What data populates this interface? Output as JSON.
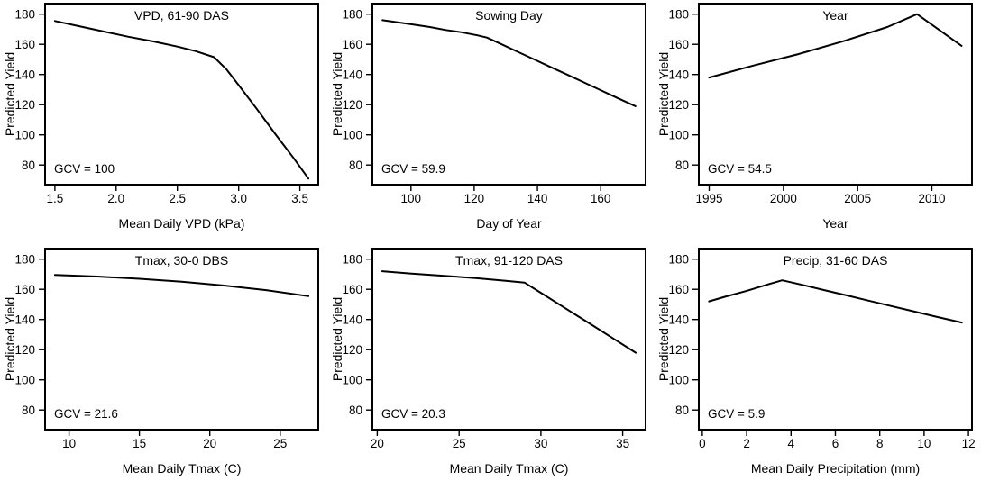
{
  "style": {
    "background": "#ffffff",
    "foreground": "#000000",
    "frame_stroke_width": 2,
    "tick_stroke_width": 1.4,
    "line_stroke_width": 2
  },
  "chart_data": [
    {
      "type": "line",
      "title": "VPD, 61-90 DAS",
      "annotation": "GCV = 100",
      "xlabel": "Mean Daily VPD (kPa)",
      "ylabel": "Predicted Yield",
      "xticks": [
        1.5,
        2.0,
        2.5,
        3.0,
        3.5
      ],
      "xtick_labels": [
        "1.5",
        "2.0",
        "2.5",
        "3.0",
        "3.5"
      ],
      "yticks": [
        80,
        100,
        120,
        140,
        160,
        180
      ],
      "xlim": [
        1.42,
        3.65
      ],
      "ylim": [
        67,
        187
      ],
      "x": [
        1.5,
        1.7,
        1.9,
        2.1,
        2.3,
        2.5,
        2.65,
        2.8,
        2.9,
        3.0,
        3.15,
        3.3,
        3.45,
        3.57
      ],
      "y": [
        175.5,
        172,
        168.5,
        165,
        162,
        158.5,
        155.5,
        151.5,
        143.5,
        133,
        117,
        100.5,
        84.5,
        71
      ]
    },
    {
      "type": "line",
      "title": "Sowing Day",
      "annotation": "GCV = 59.9",
      "xlabel": "Day of Year",
      "ylabel": "Predicted Yield",
      "xticks": [
        100,
        120,
        140,
        160
      ],
      "xtick_labels": [
        "100",
        "120",
        "140",
        "160"
      ],
      "yticks": [
        80,
        100,
        120,
        140,
        160,
        180
      ],
      "xlim": [
        87.8,
        174.2
      ],
      "ylim": [
        67,
        187
      ],
      "x": [
        91,
        96,
        101,
        106,
        111,
        116,
        121,
        124,
        129,
        134,
        139,
        144,
        149,
        154,
        159,
        164,
        168,
        171
      ],
      "y": [
        176,
        174.5,
        173,
        171.5,
        169.5,
        168,
        166,
        164.5,
        159.7,
        154.8,
        150,
        145.1,
        140.3,
        135.4,
        130.6,
        125.7,
        121.8,
        119
      ]
    },
    {
      "type": "line",
      "title": "Year",
      "annotation": "GCV = 54.5",
      "xlabel": "Year",
      "ylabel": "Predicted Yield",
      "xticks": [
        1995,
        2000,
        2005,
        2010
      ],
      "xtick_labels": [
        "1995",
        "2000",
        "2005",
        "2010"
      ],
      "yticks": [
        80,
        100,
        120,
        140,
        160,
        180
      ],
      "xlim": [
        1994.3,
        2012.7
      ],
      "ylim": [
        67,
        187
      ],
      "x": [
        1995,
        1998,
        2001,
        2004,
        2007,
        2009,
        2012
      ],
      "y": [
        138,
        146,
        153.5,
        162,
        171.5,
        180,
        159
      ]
    },
    {
      "type": "line",
      "title": "Tmax, 30-0 DBS",
      "annotation": "GCV = 21.6",
      "xlabel": "Mean Daily Tmax (C)",
      "ylabel": "Predicted Yield",
      "xticks": [
        10,
        15,
        20,
        25
      ],
      "xtick_labels": [
        "10",
        "15",
        "20",
        "25"
      ],
      "yticks": [
        80,
        100,
        120,
        140,
        160,
        180
      ],
      "xlim": [
        8.3,
        27.7
      ],
      "ylim": [
        67,
        187
      ],
      "x": [
        9,
        12,
        15,
        18,
        21,
        24,
        27
      ],
      "y": [
        169.5,
        168.5,
        167,
        165,
        162.5,
        159.5,
        155.5
      ]
    },
    {
      "type": "line",
      "title": "Tmax, 91-120 DAS",
      "annotation": "GCV = 20.3",
      "xlabel": "Mean Daily Tmax (C)",
      "ylabel": "Predicted Yield",
      "xticks": [
        20,
        25,
        30,
        35
      ],
      "xtick_labels": [
        "20",
        "25",
        "30",
        "35"
      ],
      "yticks": [
        80,
        100,
        120,
        140,
        160,
        180
      ],
      "xlim": [
        19.7,
        36.4
      ],
      "ylim": [
        67,
        187
      ],
      "x": [
        20.3,
        22,
        24,
        26,
        28,
        29,
        30,
        31.5,
        33,
        34.5,
        35.8
      ],
      "y": [
        172,
        170.5,
        169,
        167.5,
        165.5,
        164.5,
        157.7,
        147.4,
        137.2,
        126.9,
        118
      ]
    },
    {
      "type": "line",
      "title": "Precip, 31-60 DAS",
      "annotation": "GCV = 5.9",
      "xlabel": "Mean Daily Precipitation (mm)",
      "ylabel": "Predicted Yield",
      "xticks": [
        0,
        2,
        4,
        6,
        8,
        10,
        12
      ],
      "xtick_labels": [
        "0",
        "2",
        "4",
        "6",
        "8",
        "10",
        "12"
      ],
      "yticks": [
        80,
        100,
        120,
        140,
        160,
        180
      ],
      "xlim": [
        -0.16,
        12.16
      ],
      "ylim": [
        67,
        187
      ],
      "x": [
        0.3,
        1,
        2,
        3,
        3.6,
        4.5,
        5.5,
        6.5,
        7.5,
        8.5,
        9.5,
        10.5,
        11.7
      ],
      "y": [
        152,
        155,
        159,
        163.5,
        166,
        163,
        159.5,
        156,
        152.5,
        149,
        145.5,
        142,
        138
      ]
    }
  ]
}
